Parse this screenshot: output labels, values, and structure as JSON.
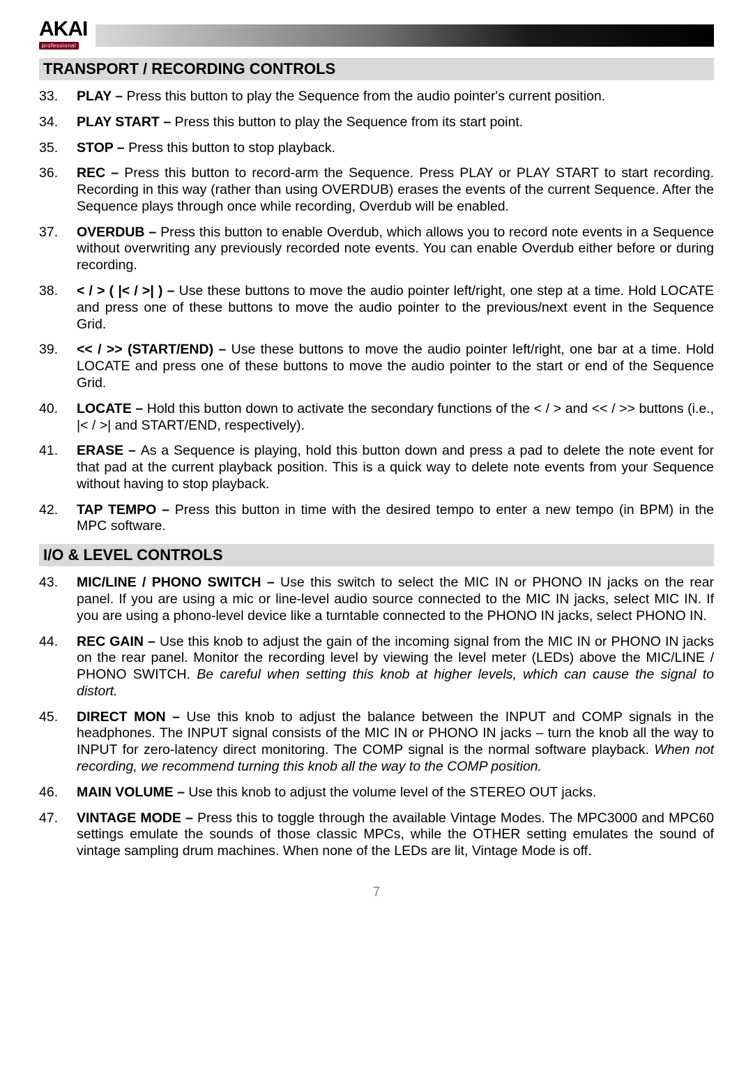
{
  "brand": {
    "name": "AKAI",
    "sub": "professional"
  },
  "colors": {
    "heading_bg": "#d9d9d9",
    "gradient_from": "#d9d9d9",
    "gradient_mid": "#737373",
    "gradient_to": "#000000",
    "logo_sub_bg": "#7a0019",
    "page_number": "#808080"
  },
  "typography": {
    "body_fontsize": 19.5,
    "heading_fontsize": 22,
    "logo_fontsize": 30
  },
  "section1": {
    "title": "TRANSPORT / RECORDING CONTROLS",
    "items": [
      {
        "num": "33.",
        "label": "PLAY – ",
        "text": "Press this button to play the Sequence from the audio pointer's current position."
      },
      {
        "num": "34.",
        "label": "PLAY START – ",
        "text": "Press this button to play the Sequence from its start point."
      },
      {
        "num": "35.",
        "label": "STOP – ",
        "text": "Press this button to stop playback."
      },
      {
        "num": "36.",
        "label": "REC – ",
        "text": "Press this button to record-arm the Sequence. Press PLAY or PLAY START to start recording. Recording in this way (rather than using OVERDUB) erases the events of the current Sequence. After the Sequence plays through once while recording, Overdub will be enabled."
      },
      {
        "num": "37.",
        "label": "OVERDUB – ",
        "text": "Press this button to enable Overdub, which allows you to record note events in a Sequence without overwriting any previously recorded note events. You can enable Overdub either before or during recording."
      },
      {
        "num": "38.",
        "label": "< / > ( |< / >| ) – ",
        "text": "Use these buttons to move the audio pointer left/right, one step at a time. Hold LOCATE and press one of these buttons to move the audio pointer to the previous/next event in the Sequence Grid."
      },
      {
        "num": "39.",
        "label": "<< / >> (START/END) – ",
        "text": "Use these buttons to move the audio pointer left/right, one bar at a time. Hold LOCATE and press one of these buttons to move the audio pointer to the start or end of the Sequence Grid."
      },
      {
        "num": "40.",
        "label": "LOCATE – ",
        "text": "Hold this button down to activate the secondary functions of the < / > and << / >> buttons (i.e., |< / >| and START/END, respectively)."
      },
      {
        "num": "41.",
        "label": "ERASE – ",
        "text": "As a Sequence is playing, hold this button down and press a pad to delete the note event for that pad at the current playback position. This is a quick way to delete note events from your Sequence without having to stop playback."
      },
      {
        "num": "42.",
        "label": "TAP TEMPO – ",
        "text": "Press this button in time with the desired tempo to enter a new tempo (in BPM) in the MPC software."
      }
    ]
  },
  "section2": {
    "title": "I/O & LEVEL CONTROLS",
    "items": [
      {
        "num": "43.",
        "label": "MIC/LINE / PHONO SWITCH – ",
        "text": "Use this switch to select the MIC IN or PHONO IN jacks on the rear panel. If you are using a mic or line-level audio source connected to the MIC IN jacks, select MIC IN. If you are using a phono-level device like a turntable connected to the PHONO IN jacks, select PHONO IN."
      },
      {
        "num": "44.",
        "label": "REC GAIN – ",
        "text": "Use this knob to adjust the gain of the incoming signal from the MIC IN or PHONO IN jacks on the rear panel. Monitor the recording level by viewing the level meter (LEDs) above the MIC/LINE / PHONO SWITCH. ",
        "italic": "Be careful when setting this knob at higher levels, which can cause the signal to distort."
      },
      {
        "num": "45.",
        "label": "DIRECT MON – ",
        "text": "Use this knob to adjust the balance between the INPUT and COMP signals in the headphones. The INPUT signal consists of the MIC IN or PHONO IN jacks – turn the knob all the way to INPUT for zero-latency direct monitoring. The COMP signal is the normal software playback. ",
        "italic": "When not recording, we recommend turning this knob all the way to the COMP position."
      },
      {
        "num": "46.",
        "label": "MAIN VOLUME – ",
        "text": "Use this knob to adjust the volume level of the STEREO OUT jacks."
      },
      {
        "num": "47.",
        "label": "VINTAGE MODE – ",
        "text": "Press this to toggle through the available Vintage Modes. The MPC3000 and MPC60 settings emulate the sounds of those classic MPCs, while the OTHER setting emulates the sound of vintage sampling drum machines. When none of the LEDs are lit, Vintage Mode is off."
      }
    ]
  },
  "page_number": "7"
}
